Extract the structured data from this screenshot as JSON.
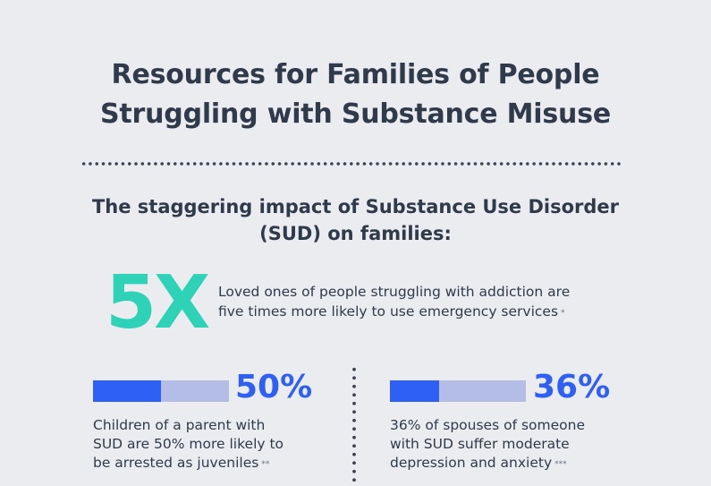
{
  "title_line1": "Resources for Families of People",
  "title_line2": "Struggling with Substance Misuse",
  "subtitle_line1": "The staggering impact of Substance Use Disorder",
  "subtitle_line2": "(SUD) on families:",
  "big_stat": {
    "value": "5X",
    "line1": "Loved ones of people struggling with addiction are",
    "line2": "five times more likely to use emergency services",
    "footnote": "*"
  },
  "stat_left": {
    "percent_label": "50%",
    "fill_fraction": 0.5,
    "line1": "Children of a parent with",
    "line2": "SUD are 50% more likely to",
    "line3": "be arrested as juveniles",
    "footnote": "**"
  },
  "stat_right": {
    "percent_label": "36%",
    "fill_fraction": 0.36,
    "line1": "36% of spouses of someone",
    "line2": "with SUD suffer moderate",
    "line3": "depression and anxiety",
    "footnote": "***"
  },
  "colors": {
    "accent_teal": "#2ed3b7",
    "accent_blue": "#2f60f5",
    "bar_track": "#b3bde6",
    "background": "#ebecf0"
  }
}
